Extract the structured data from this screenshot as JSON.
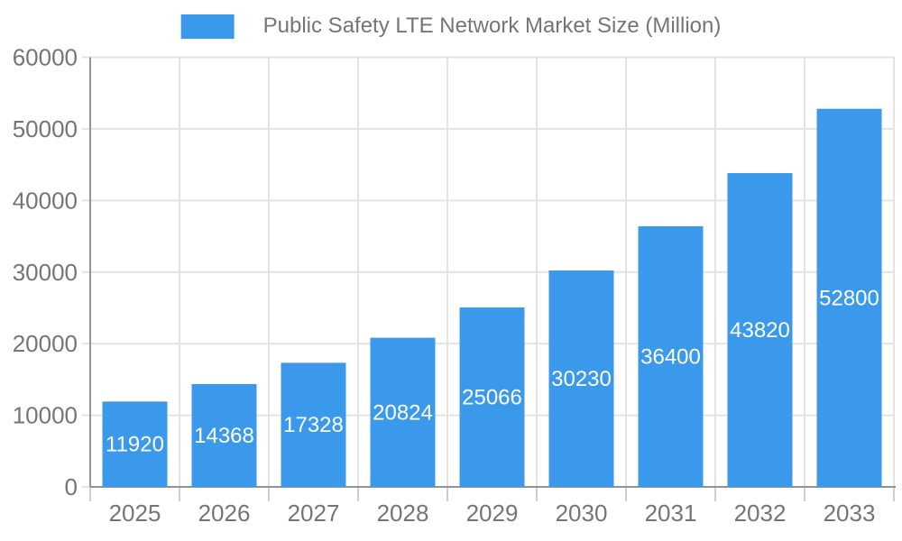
{
  "chart_data": {
    "type": "bar",
    "title": "Public Safety LTE Network Market Size (Million)",
    "legend_position": "top",
    "categories": [
      "2025",
      "2026",
      "2027",
      "2028",
      "2029",
      "2030",
      "2031",
      "2032",
      "2033"
    ],
    "values": [
      11920,
      14368,
      17328,
      20824,
      25066,
      30230,
      36400,
      43820,
      52800
    ],
    "xlabel": "",
    "ylabel": "",
    "ylim": [
      0,
      60000
    ],
    "yticks": [
      0,
      10000,
      20000,
      30000,
      40000,
      50000,
      60000
    ],
    "grid": true,
    "value_labels": {
      "visible": true,
      "position": "inside-center"
    },
    "colors": {
      "bar": "#3B99EC",
      "value_label": "#FFFFFF",
      "axis_text": "#757575",
      "axis_line": "#949494",
      "grid_line": "#E3E3E3",
      "tick_mark": "#CFCFCF",
      "background": "#FFFFFF"
    }
  }
}
